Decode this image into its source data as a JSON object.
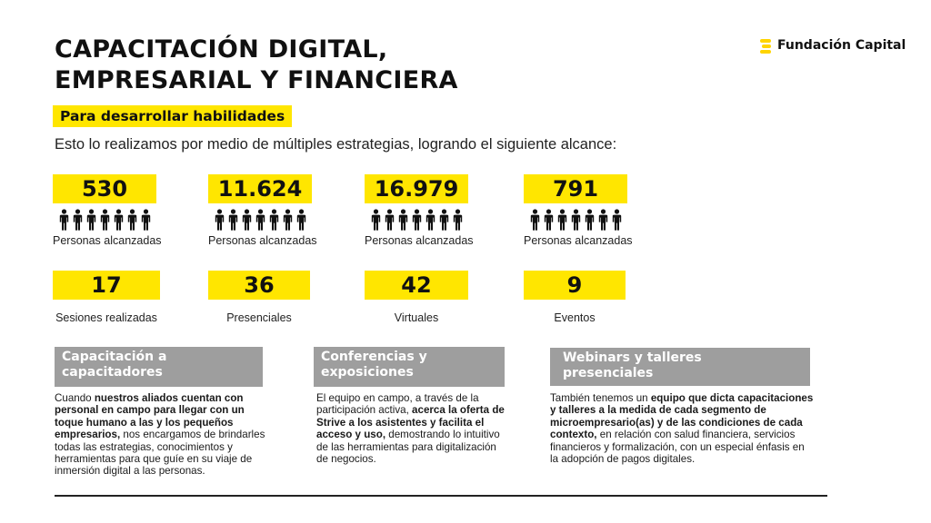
{
  "title": {
    "line1": "CAPACITACIÓN DIGITAL,",
    "line2": "EMPRESARIAL Y FINANCIERA"
  },
  "logo": {
    "text": "Fundación Capital",
    "icon": "logo-mark-icon"
  },
  "subtitle": "Para desarrollar habilidades",
  "intro": "Esto lo realizamos por medio de múltiples estrategias, logrando el siguiente alcance:",
  "stats_people": [
    {
      "value": "530",
      "label": "Personas alcanzadas"
    },
    {
      "value": "11.624",
      "label": "Personas alcanzadas"
    },
    {
      "value": "16.979",
      "label": "Personas alcanzadas"
    },
    {
      "value": "791",
      "label": "Personas alcanzadas"
    }
  ],
  "people_icon": "person-icon",
  "stats_sessions": [
    {
      "value": "17",
      "label": "Sesiones realizadas"
    },
    {
      "value": "36",
      "label": "Presenciales"
    },
    {
      "value": "42",
      "label": "Virtuales"
    },
    {
      "value": "9",
      "label": "Eventos"
    }
  ],
  "cards": [
    {
      "heading": [
        "Capacitación a",
        "capacitadores"
      ],
      "body": [
        {
          "t": "Cuando ",
          "b": false
        },
        {
          "t": "nuestros aliados cuentan con personal en campo para llegar con un toque humano a las y los pequeños empresarios,",
          "b": true
        },
        {
          "t": " nos encargamos de brindarles todas las estrategias, conocimientos y herramientas para que guíe en su viaje de inmersión digital a las personas.",
          "b": false
        }
      ]
    },
    {
      "heading": [
        "Conferencias y",
        "exposiciones"
      ],
      "body": [
        {
          "t": "El equipo en campo, a través de la participación activa, ",
          "b": false
        },
        {
          "t": "acerca la oferta de Strive a los asistentes y facilita el acceso y uso,",
          "b": true
        },
        {
          "t": " demostrando lo intuitivo de las herramientas para digitalización de negocios.",
          "b": false
        }
      ]
    },
    {
      "heading": [
        "Webinars y talleres",
        "presenciales"
      ],
      "body": [
        {
          "t": "También tenemos un ",
          "b": false
        },
        {
          "t": "equipo que dicta capacitaciones y talleres a la medida de cada segmento de microempresario(as) y de las condiciones de cada contexto,",
          "b": true
        },
        {
          "t": " en relación con salud financiera, servicios financieros y formalización, con un especial énfasis en la adopción de pagos digitales.",
          "b": false
        }
      ]
    }
  ],
  "colors": {
    "accent": "#ffe600",
    "card_header": "#9e9e9e",
    "text": "#1a1a1a"
  }
}
